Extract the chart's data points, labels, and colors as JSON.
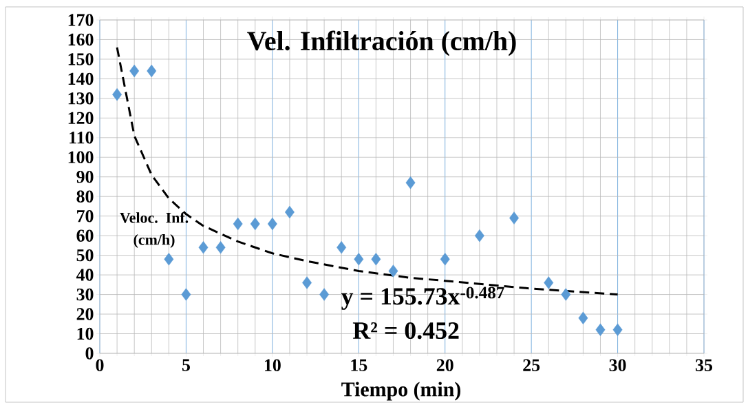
{
  "chart_data": {
    "type": "scatter",
    "title": "Vel. Infiltración (cm/h)",
    "xlabel": "Tiempo (min)",
    "ylabel": "Veloc. Inf. (cm/h)",
    "annotations": [
      "y = 155.73x$^{-0.487}$",
      "R² = 0.452"
    ],
    "series": [
      {
        "color": "#5b9bd5",
        "marker": "diamond",
        "x": [
          1,
          2,
          3,
          4,
          5,
          6,
          7,
          8,
          9,
          10,
          11,
          12,
          13,
          14,
          15,
          16,
          17,
          18,
          20,
          22,
          24,
          26,
          27,
          28,
          29,
          30
        ],
        "values": [
          132,
          144,
          144,
          48,
          30,
          54,
          54,
          66,
          66,
          66,
          72,
          36,
          30,
          54,
          48,
          48,
          42,
          87,
          48,
          60,
          69,
          36,
          30,
          18,
          12,
          12
        ]
      },
      {
        "type": "line",
        "color": "#000000",
        "marker": "none",
        "line_style": "dashed",
        "x": [
          1,
          2,
          3,
          4,
          5,
          6,
          8,
          10,
          12,
          15,
          18,
          20,
          25,
          30
        ],
        "values": [
          156,
          111,
          91,
          79,
          71,
          65,
          57,
          51,
          47,
          42,
          38.5,
          37,
          33,
          30
        ]
      }
    ],
    "xlim": [
      0,
      35
    ],
    "ylim": [
      0,
      170
    ],
    "xticks": [
      0,
      5,
      10,
      15,
      20,
      25,
      30,
      35
    ],
    "yticks": [
      0,
      10,
      20,
      30,
      40,
      50,
      60,
      70,
      80,
      90,
      100,
      110,
      120,
      130,
      140,
      150,
      160,
      170
    ],
    "grid": true
  }
}
